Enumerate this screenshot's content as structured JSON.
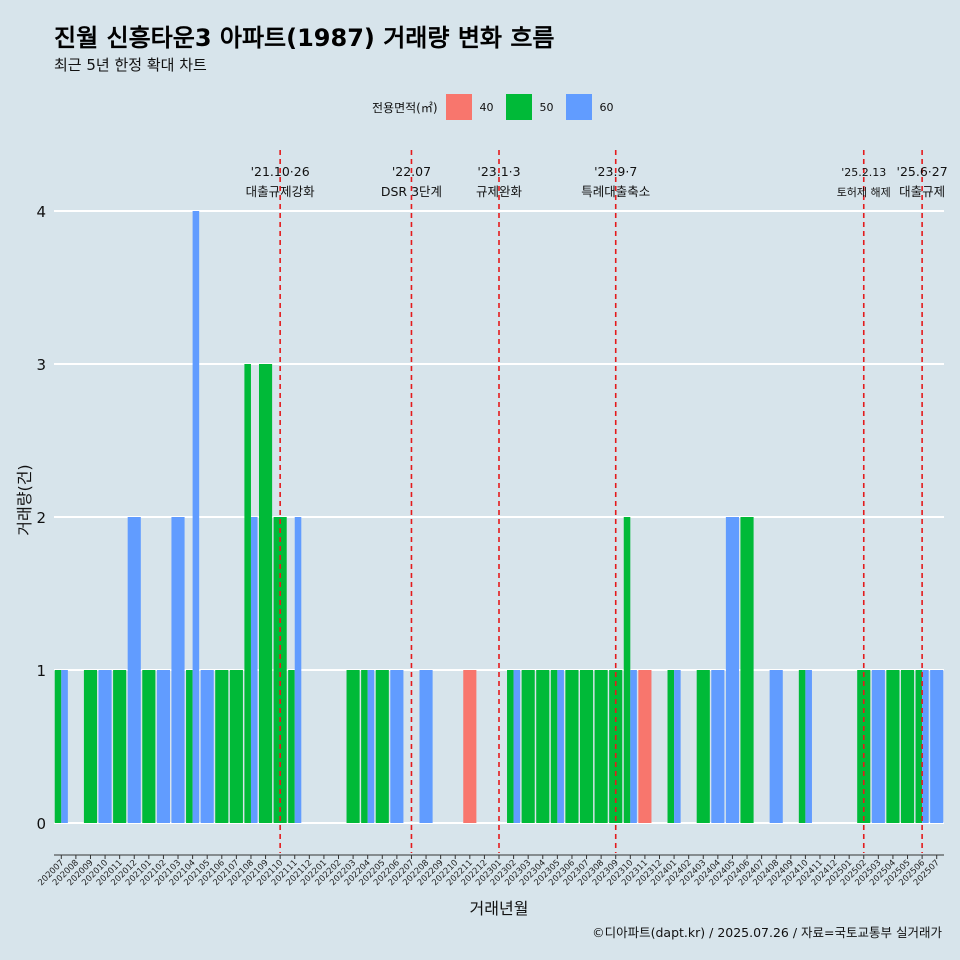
{
  "header": {
    "title": "진월 신흥타운3 아파트(1987) 거래량 변화 흐름",
    "subtitle": "최근 5년 한정 확대 차트"
  },
  "legend": {
    "title": "전용면적(㎡)",
    "items": [
      {
        "label": "40",
        "color": "#f8766d"
      },
      {
        "label": "50",
        "color": "#00ba38"
      },
      {
        "label": "60",
        "color": "#619cff"
      }
    ]
  },
  "caption": "©디아파트(dapt.kr) / 2025.07.26 / 자료=국토교통부 실거래가",
  "chart_data": {
    "type": "bar",
    "xlabel": "거래년월",
    "ylabel": "거래량(건)",
    "ylim": [
      0,
      4
    ],
    "y_ticks": [
      0,
      1,
      2,
      3,
      4
    ],
    "grid": true,
    "legend_position": "top",
    "categories": [
      "202007",
      "202008",
      "202009",
      "202010",
      "202011",
      "202012",
      "202101",
      "202102",
      "202103",
      "202104",
      "202105",
      "202106",
      "202107",
      "202108",
      "202109",
      "202110",
      "202111",
      "202112",
      "202201",
      "202202",
      "202203",
      "202204",
      "202205",
      "202206",
      "202207",
      "202208",
      "202209",
      "202210",
      "202211",
      "202212",
      "202301",
      "202302",
      "202303",
      "202304",
      "202305",
      "202306",
      "202307",
      "202308",
      "202309",
      "202310",
      "202311",
      "202312",
      "202401",
      "202402",
      "202403",
      "202404",
      "202405",
      "202406",
      "202407",
      "202408",
      "202409",
      "202410",
      "202411",
      "202412",
      "202501",
      "202502",
      "202503",
      "202504",
      "202505",
      "202506",
      "202507"
    ],
    "series": [
      {
        "name": "40",
        "color": "#f8766d",
        "values": [
          0,
          0,
          0,
          0,
          0,
          0,
          0,
          0,
          0,
          0,
          0,
          0,
          0,
          0,
          0,
          0,
          0,
          0,
          0,
          0,
          0,
          0,
          0,
          0,
          0,
          0,
          0,
          0,
          1,
          0,
          0,
          0,
          0,
          0,
          0,
          0,
          0,
          0,
          0,
          0,
          1,
          0,
          0,
          0,
          0,
          0,
          0,
          0,
          0,
          0,
          0,
          0,
          0,
          0,
          0,
          0,
          0,
          0,
          0,
          0,
          0
        ]
      },
      {
        "name": "50",
        "color": "#00ba38",
        "values": [
          1,
          0,
          1,
          0,
          1,
          0,
          1,
          0,
          0,
          1,
          0,
          1,
          1,
          3,
          3,
          2,
          1,
          0,
          0,
          0,
          1,
          1,
          1,
          0,
          0,
          0,
          0,
          0,
          0,
          0,
          0,
          1,
          1,
          1,
          1,
          1,
          1,
          1,
          1,
          2,
          0,
          0,
          1,
          0,
          1,
          0,
          0,
          2,
          0,
          0,
          0,
          1,
          0,
          0,
          0,
          1,
          0,
          1,
          1,
          1,
          0
        ]
      },
      {
        "name": "60",
        "color": "#619cff",
        "values": [
          1,
          0,
          0,
          1,
          0,
          2,
          0,
          1,
          2,
          4,
          1,
          0,
          0,
          2,
          0,
          0,
          2,
          0,
          0,
          0,
          0,
          1,
          0,
          1,
          0,
          1,
          0,
          0,
          0,
          0,
          0,
          1,
          0,
          0,
          1,
          0,
          0,
          0,
          0,
          1,
          0,
          0,
          1,
          0,
          0,
          1,
          2,
          0,
          0,
          1,
          0,
          1,
          0,
          0,
          0,
          0,
          1,
          0,
          0,
          1,
          1
        ]
      }
    ],
    "events": [
      {
        "category": "202110",
        "date": "'21.10·26",
        "label": "대출규제강화"
      },
      {
        "category": "202207",
        "date": "'22.07",
        "label": "DSR 3단계"
      },
      {
        "category": "202301",
        "date": "'23.1·3",
        "label": "규제완화"
      },
      {
        "category": "202309",
        "date": "'23.9·7",
        "label": "특례대출축소"
      },
      {
        "category": "202502",
        "date": "'25.2.13",
        "label": "토허제 해제"
      },
      {
        "category": "202506",
        "date": "'25.6·27",
        "label": "대출규제"
      }
    ]
  }
}
